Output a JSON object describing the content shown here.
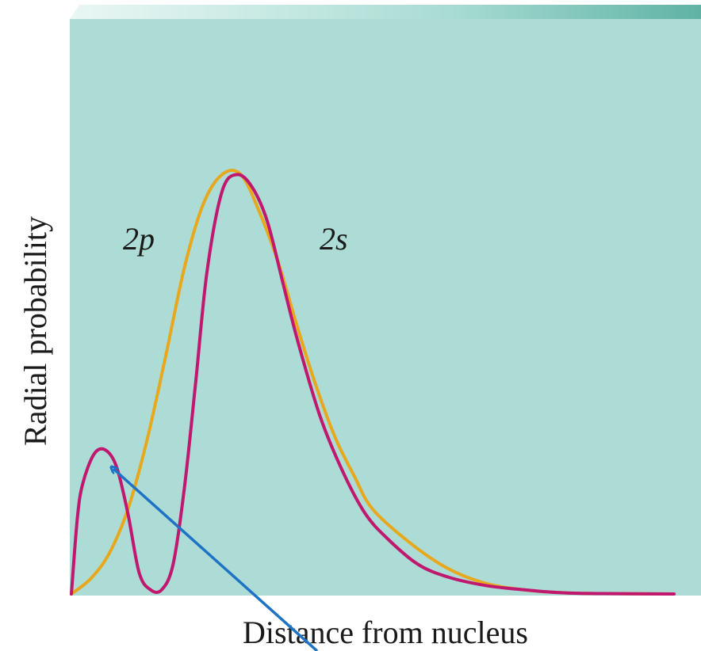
{
  "chart_data": {
    "type": "line",
    "xlabel": "Distance from nucleus",
    "ylabel": "Radial probability",
    "xlim": [
      0,
      8
    ],
    "ylim": [
      0,
      1
    ],
    "grid": false,
    "series": [
      {
        "name": "2p",
        "color": "#e8a81e",
        "x": [
          0,
          0.25,
          0.5,
          0.75,
          1.0,
          1.25,
          1.5,
          1.75,
          2.0,
          2.25,
          2.5,
          2.75,
          3.0,
          3.25,
          3.5,
          3.75,
          4.0,
          4.5,
          5.0,
          5.5,
          6.0,
          6.5,
          7.0,
          8.0
        ],
        "y": [
          0,
          0.035,
          0.095,
          0.2,
          0.36,
          0.56,
          0.77,
          0.92,
          0.99,
          0.99,
          0.9,
          0.78,
          0.63,
          0.49,
          0.37,
          0.28,
          0.2,
          0.12,
          0.06,
          0.025,
          0.01,
          0.003,
          0.001,
          0
        ]
      },
      {
        "name": "2s",
        "color": "#c0186e",
        "x": [
          0,
          0.08,
          0.15,
          0.3,
          0.45,
          0.6,
          0.75,
          0.9,
          1.05,
          1.2,
          1.35,
          1.5,
          1.65,
          1.8,
          2.0,
          2.2,
          2.4,
          2.6,
          2.8,
          3.0,
          3.3,
          3.6,
          3.9,
          4.2,
          4.6,
          5.0,
          5.5,
          6.0,
          6.5,
          7.0,
          8.0
        ],
        "y": [
          0,
          0.18,
          0.26,
          0.33,
          0.34,
          0.3,
          0.19,
          0.05,
          0.01,
          0.01,
          0.07,
          0.25,
          0.5,
          0.76,
          0.95,
          0.99,
          0.96,
          0.88,
          0.74,
          0.6,
          0.42,
          0.29,
          0.19,
          0.13,
          0.07,
          0.04,
          0.02,
          0.01,
          0.003,
          0.001,
          0
        ]
      }
    ]
  }
}
